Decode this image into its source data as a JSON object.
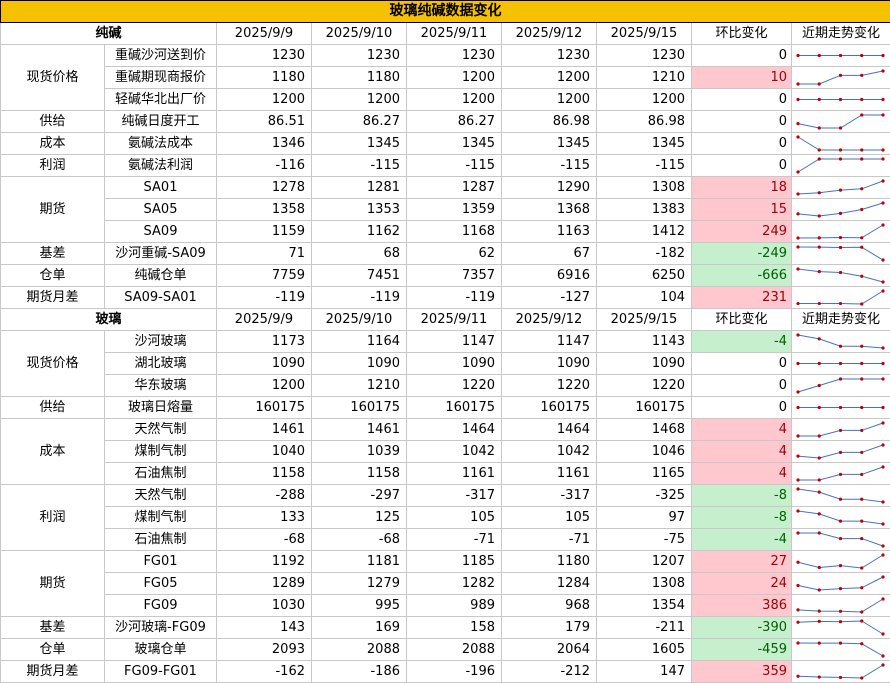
{
  "title": "玻璃纯碱数据变化",
  "chg_header": "环比变化",
  "trend_header": "近期走势变化",
  "colors": {
    "up_bg": "#ffc7ce",
    "up_text": "#9c0006",
    "down_bg": "#c6efce",
    "down_text": "#006100",
    "title_bg": "#f6c100",
    "line": "#4472c4",
    "marker": "#c00000"
  },
  "sections": [
    {
      "name": "纯碱",
      "dates": [
        "2025/9/9",
        "2025/9/10",
        "2025/9/11",
        "2025/9/12",
        "2025/9/15"
      ],
      "groups": [
        {
          "category": "现货价格",
          "rows": [
            {
              "item": "重碱沙河送到价",
              "values": [
                1230,
                1230,
                1230,
                1230,
                1230
              ],
              "change": "0"
            },
            {
              "item": "重碱期现商报价",
              "values": [
                1180,
                1180,
                1200,
                1200,
                1210
              ],
              "change": "10"
            },
            {
              "item": "轻碱华北出厂价",
              "values": [
                1200,
                1200,
                1200,
                1200,
                1200
              ],
              "change": "0"
            }
          ]
        },
        {
          "category": "供给",
          "rows": [
            {
              "item": "纯碱日度开工",
              "values": [
                86.51,
                86.27,
                86.27,
                86.98,
                86.98
              ],
              "change": "0"
            }
          ]
        },
        {
          "category": "成本",
          "rows": [
            {
              "item": "氨碱法成本",
              "values": [
                1346,
                1345,
                1345,
                1345,
                1345
              ],
              "change": "0"
            }
          ]
        },
        {
          "category": "利润",
          "rows": [
            {
              "item": "氨碱法利润",
              "values": [
                -116,
                -115,
                -115,
                -115,
                -115
              ],
              "change": "0"
            }
          ]
        },
        {
          "category": "期货",
          "rows": [
            {
              "item": "SA01",
              "values": [
                1278,
                1281,
                1287,
                1290,
                1308
              ],
              "change": "18"
            },
            {
              "item": "SA05",
              "values": [
                1358,
                1353,
                1359,
                1368,
                1383
              ],
              "change": "15"
            },
            {
              "item": "SA09",
              "values": [
                1159,
                1162,
                1168,
                1163,
                1412
              ],
              "change": "249"
            }
          ]
        },
        {
          "category": "基差",
          "rows": [
            {
              "item": "沙河重碱-SA09",
              "values": [
                71,
                68,
                62,
                67,
                -182
              ],
              "change": "-249"
            }
          ]
        },
        {
          "category": "仓单",
          "rows": [
            {
              "item": "纯碱仓单",
              "values": [
                7759,
                7451,
                7357,
                6916,
                6250
              ],
              "change": "-666"
            }
          ]
        },
        {
          "category": "期货月差",
          "rows": [
            {
              "item": "SA09-SA01",
              "values": [
                -119,
                -119,
                -119,
                -127,
                104
              ],
              "change": "231"
            }
          ]
        }
      ]
    },
    {
      "name": "玻璃",
      "dates": [
        "2025/9/9",
        "2025/9/10",
        "2025/9/11",
        "2025/9/12",
        "2025/9/15"
      ],
      "groups": [
        {
          "category": "现货价格",
          "rows": [
            {
              "item": "沙河玻璃",
              "values": [
                1173,
                1164,
                1147,
                1147,
                1143
              ],
              "change": "-4"
            },
            {
              "item": "湖北玻璃",
              "values": [
                1090,
                1090,
                1090,
                1090,
                1090
              ],
              "change": "0"
            },
            {
              "item": "华东玻璃",
              "values": [
                1200,
                1210,
                1220,
                1220,
                1220
              ],
              "change": "0"
            }
          ]
        },
        {
          "category": "供给",
          "rows": [
            {
              "item": "玻璃日熔量",
              "values": [
                160175,
                160175,
                160175,
                160175,
                160175
              ],
              "change": "0"
            }
          ]
        },
        {
          "category": "成本",
          "rows": [
            {
              "item": "天然气制",
              "values": [
                1461,
                1461,
                1464,
                1464,
                1468
              ],
              "change": "4"
            },
            {
              "item": "煤制气制",
              "values": [
                1040,
                1039,
                1042,
                1042,
                1046
              ],
              "change": "4"
            },
            {
              "item": "石油焦制",
              "values": [
                1158,
                1158,
                1161,
                1161,
                1165
              ],
              "change": "4"
            }
          ]
        },
        {
          "category": "利润",
          "rows": [
            {
              "item": "天然气制",
              "values": [
                -288,
                -297,
                -317,
                -317,
                -325
              ],
              "change": "-8"
            },
            {
              "item": "煤制气制",
              "values": [
                133,
                125,
                105,
                105,
                97
              ],
              "change": "-8"
            },
            {
              "item": "石油焦制",
              "values": [
                -68,
                -68,
                -71,
                -71,
                -75
              ],
              "change": "-4"
            }
          ]
        },
        {
          "category": "期货",
          "rows": [
            {
              "item": "FG01",
              "values": [
                1192,
                1181,
                1185,
                1180,
                1207
              ],
              "change": "27"
            },
            {
              "item": "FG05",
              "values": [
                1289,
                1279,
                1282,
                1284,
                1308
              ],
              "change": "24"
            },
            {
              "item": "FG09",
              "values": [
                1030,
                995,
                989,
                968,
                1354
              ],
              "change": "386"
            }
          ]
        },
        {
          "category": "基差",
          "rows": [
            {
              "item": "沙河玻璃-FG09",
              "values": [
                143,
                169,
                158,
                179,
                -211
              ],
              "change": "-390"
            }
          ]
        },
        {
          "category": "仓单",
          "rows": [
            {
              "item": "玻璃仓单",
              "values": [
                2093,
                2088,
                2088,
                2064,
                1605
              ],
              "change": "-459"
            }
          ]
        },
        {
          "category": "期货月差",
          "rows": [
            {
              "item": "FG09-FG01",
              "values": [
                -162,
                -186,
                -196,
                -212,
                147
              ],
              "change": "359"
            }
          ]
        }
      ]
    }
  ]
}
